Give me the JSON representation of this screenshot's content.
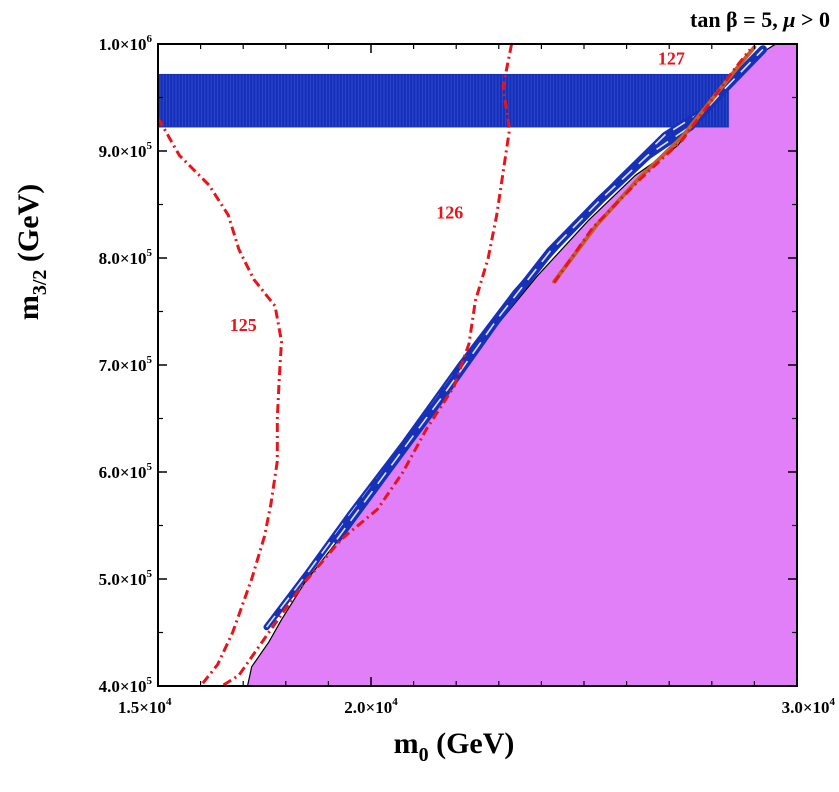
{
  "chart_data": {
    "type": "contour",
    "title": {
      "text": "tan β = 5,  μ > 0",
      "parts": [
        "tan β = 5,  ",
        "μ",
        " > 0"
      ]
    },
    "xlabel": {
      "main": "m",
      "sub": "0",
      "unit": " (GeV)"
    },
    "ylabel": {
      "main": "m",
      "sub": "3/2",
      "unit": " (GeV)"
    },
    "xlim": [
      15000,
      30000
    ],
    "ylim": [
      400000,
      1000000
    ],
    "x_ticks": [
      {
        "value": 15000,
        "mantissa": "1.5×10",
        "exp": "4"
      },
      {
        "value": 20000,
        "mantissa": "2.0×10",
        "exp": "4"
      },
      {
        "value": 30000,
        "mantissa": "3.0×10",
        "exp": "4"
      }
    ],
    "y_ticks": [
      {
        "value": 400000,
        "mantissa": "4.0×10",
        "exp": "5"
      },
      {
        "value": 500000,
        "mantissa": "5.0×10",
        "exp": "5"
      },
      {
        "value": 600000,
        "mantissa": "6.0×10",
        "exp": "5"
      },
      {
        "value": 700000,
        "mantissa": "7.0×10",
        "exp": "5"
      },
      {
        "value": 800000,
        "mantissa": "8.0×10",
        "exp": "5"
      },
      {
        "value": 900000,
        "mantissa": "9.0×10",
        "exp": "5"
      },
      {
        "value": 1000000,
        "mantissa": "1.0×10",
        "exp": "6"
      }
    ],
    "colors": {
      "excluded": "#e07ff7",
      "blue": "#1630b8",
      "red": "#e8141a",
      "brown": "#c0602a"
    },
    "excluded_region": {
      "boundary": [
        [
          16000,
          400000
        ],
        [
          17100,
          400000
        ],
        [
          17200,
          418000
        ],
        [
          17600,
          441000
        ],
        [
          17900,
          462000
        ],
        [
          18450,
          497000
        ],
        [
          19300,
          540000
        ],
        [
          20200,
          590000
        ],
        [
          21400,
          655000
        ],
        [
          22600,
          720000
        ],
        [
          23900,
          783000
        ],
        [
          25100,
          835000
        ],
        [
          26200,
          877000
        ],
        [
          27200,
          905000
        ],
        [
          27800,
          937000
        ],
        [
          28500,
          968000
        ],
        [
          29100,
          990000
        ],
        [
          29500,
          1000000
        ],
        [
          30000,
          1000000
        ],
        [
          30000,
          400000
        ]
      ]
    },
    "blue_band": {
      "x_range": [
        15000,
        28400
      ],
      "y_range": [
        922000,
        972000
      ]
    },
    "blue_strips": [
      {
        "points": [
          [
            17550,
            455000
          ],
          [
            18500,
            505000
          ],
          [
            19500,
            560000
          ],
          [
            20800,
            628000
          ],
          [
            22100,
            700000
          ],
          [
            23400,
            768000
          ],
          [
            24600,
            822000
          ],
          [
            25800,
            872000
          ],
          [
            26900,
            915000
          ],
          [
            27700,
            935000
          ]
        ],
        "width": 0.9
      },
      {
        "points": [
          [
            19200,
            537000
          ],
          [
            20400,
            602000
          ],
          [
            21700,
            672000
          ],
          [
            23000,
            745000
          ],
          [
            24200,
            806000
          ],
          [
            25400,
            855000
          ],
          [
            26500,
            896000
          ],
          [
            27500,
            923000
          ],
          [
            28300,
            958000
          ],
          [
            29200,
            995000
          ]
        ],
        "width": 1.2
      }
    ],
    "brown_strip": {
      "points": [
        [
          24300,
          778000
        ],
        [
          25300,
          831000
        ],
        [
          26300,
          875000
        ],
        [
          27300,
          913000
        ],
        [
          28000,
          948000
        ],
        [
          28600,
          978000
        ],
        [
          29000,
          997000
        ]
      ]
    },
    "higgs_contours": [
      {
        "label": "125",
        "label_at": [
          17000,
          732000
        ],
        "points": [
          [
            15000,
            931000
          ],
          [
            15500,
            896000
          ],
          [
            16200,
            868000
          ],
          [
            16650,
            840000
          ],
          [
            16900,
            808000
          ],
          [
            17250,
            780000
          ],
          [
            17750,
            755000
          ],
          [
            17900,
            722000
          ],
          [
            17850,
            690000
          ],
          [
            17800,
            650000
          ],
          [
            17800,
            610000
          ],
          [
            17650,
            570000
          ],
          [
            17500,
            540000
          ],
          [
            17200,
            500000
          ],
          [
            16750,
            450000
          ],
          [
            16400,
            420000
          ],
          [
            16000,
            400000
          ]
        ]
      },
      {
        "label": "126",
        "label_at": [
          21850,
          837000
        ],
        "points": [
          [
            23300,
            1000000
          ],
          [
            23100,
            960000
          ],
          [
            23250,
            920000
          ],
          [
            23100,
            880000
          ],
          [
            22950,
            840000
          ],
          [
            22750,
            800000
          ],
          [
            22450,
            760000
          ],
          [
            22300,
            720000
          ],
          [
            21950,
            680000
          ],
          [
            21300,
            640000
          ],
          [
            20750,
            600000
          ],
          [
            20150,
            565000
          ],
          [
            19300,
            537000
          ],
          [
            18400,
            495000
          ],
          [
            17600,
            450000
          ],
          [
            16900,
            410000
          ],
          [
            16500,
            400000
          ]
        ]
      },
      {
        "label": "127",
        "label_at": [
          27050,
          981000
        ],
        "points": [
          [
            24300,
            777000
          ],
          [
            25200,
            828000
          ],
          [
            26300,
            873000
          ],
          [
            27300,
            910000
          ],
          [
            27900,
            942000
          ],
          [
            28500,
            975000
          ],
          [
            28900,
            995000
          ]
        ]
      }
    ]
  }
}
